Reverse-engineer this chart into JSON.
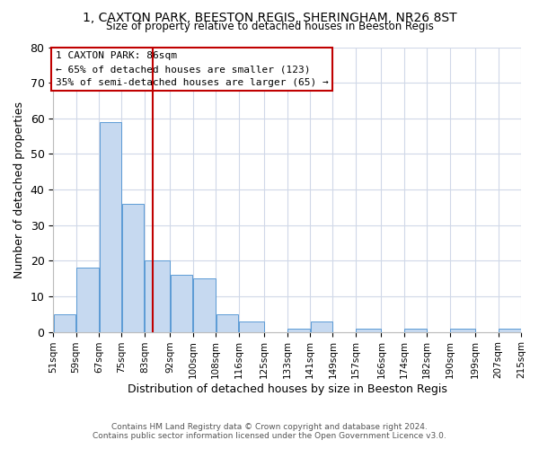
{
  "title": "1, CAXTON PARK, BEESTON REGIS, SHERINGHAM, NR26 8ST",
  "subtitle": "Size of property relative to detached houses in Beeston Regis",
  "xlabel": "Distribution of detached houses by size in Beeston Regis",
  "ylabel": "Number of detached properties",
  "bar_color": "#c6d9f0",
  "bar_edge_color": "#5b9bd5",
  "bins": [
    51,
    59,
    67,
    75,
    83,
    92,
    100,
    108,
    116,
    125,
    133,
    141,
    149,
    157,
    166,
    174,
    182,
    190,
    199,
    207,
    215
  ],
  "bin_labels": [
    "51sqm",
    "59sqm",
    "67sqm",
    "75sqm",
    "83sqm",
    "92sqm",
    "100sqm",
    "108sqm",
    "116sqm",
    "125sqm",
    "133sqm",
    "141sqm",
    "149sqm",
    "157sqm",
    "166sqm",
    "174sqm",
    "182sqm",
    "190sqm",
    "199sqm",
    "207sqm",
    "215sqm"
  ],
  "counts": [
    5,
    18,
    59,
    36,
    20,
    16,
    15,
    5,
    3,
    0,
    1,
    3,
    0,
    1,
    0,
    1,
    0,
    1,
    0,
    1
  ],
  "property_size": 86,
  "vline_x": 86,
  "vline_color": "#c00000",
  "annotation_line1": "1 CAXTON PARK: 86sqm",
  "annotation_line2": "← 65% of detached houses are smaller (123)",
  "annotation_line3": "35% of semi-detached houses are larger (65) →",
  "annotation_box_color": "#c00000",
  "ylim": [
    0,
    80
  ],
  "yticks": [
    0,
    10,
    20,
    30,
    40,
    50,
    60,
    70,
    80
  ],
  "footer_line1": "Contains HM Land Registry data © Crown copyright and database right 2024.",
  "footer_line2": "Contains public sector information licensed under the Open Government Licence v3.0.",
  "background_color": "#ffffff",
  "grid_color": "#d0d8e8"
}
